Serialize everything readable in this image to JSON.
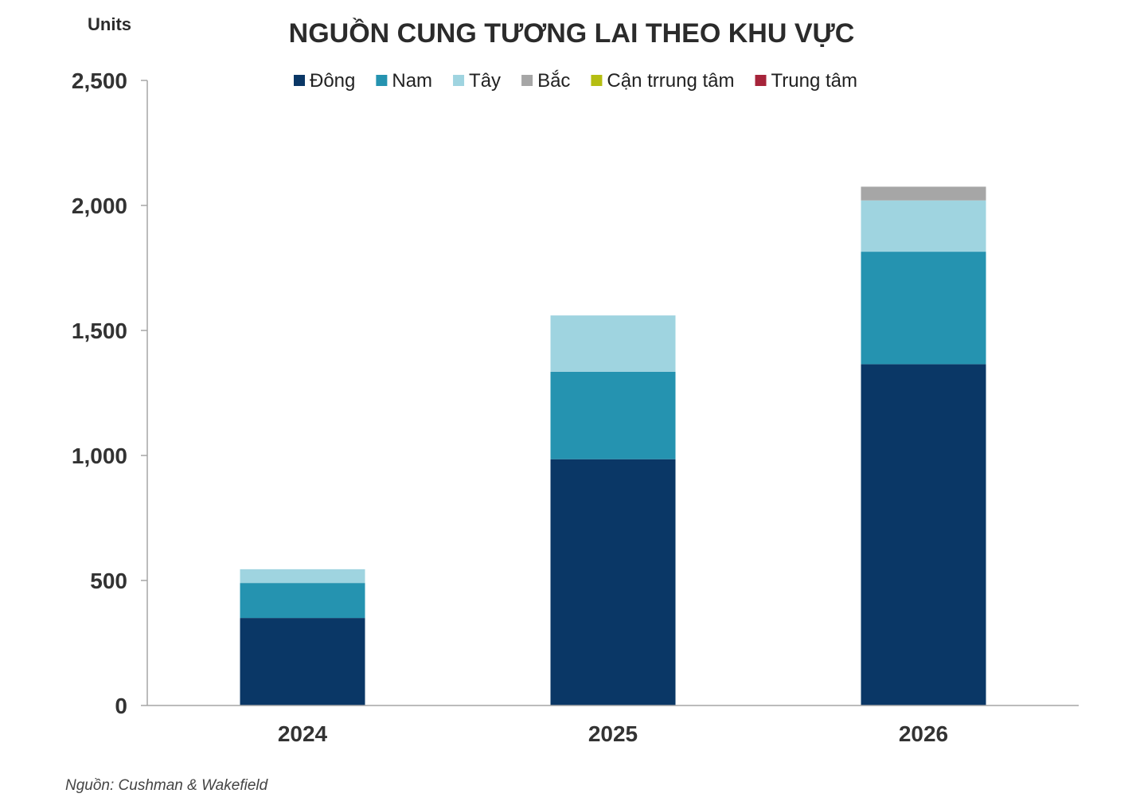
{
  "chart_data": {
    "type": "bar",
    "stacked": true,
    "title": "NGUỒN CUNG TƯƠNG LAI  THEO KHU VỰC",
    "ylabel": "Units",
    "categories": [
      "2024",
      "2025",
      "2026"
    ],
    "ylim": [
      0,
      2500
    ],
    "yticks": [
      0,
      500,
      1000,
      1500,
      2000,
      2500
    ],
    "ytick_labels": [
      "0",
      "500",
      "1,000",
      "1,500",
      "2,000",
      "2,500"
    ],
    "legend_position": "top",
    "grid": false,
    "series": [
      {
        "name": "Đông",
        "color": "#0a3766",
        "values": [
          350,
          985,
          1365
        ]
      },
      {
        "name": "Nam",
        "color": "#2593b0",
        "values": [
          140,
          350,
          450
        ]
      },
      {
        "name": "Tây",
        "color": "#9fd4e0",
        "values": [
          55,
          225,
          205
        ]
      },
      {
        "name": "Bắc",
        "color": "#a6a6a6",
        "values": [
          0,
          0,
          55
        ]
      },
      {
        "name": "Cận trrung tâm",
        "color": "#b5be12",
        "values": [
          0,
          0,
          0
        ]
      },
      {
        "name": "Trung tâm",
        "color": "#a6243a",
        "values": [
          0,
          0,
          0
        ]
      }
    ]
  },
  "source": "Nguồn: Cushman & Wakefield"
}
